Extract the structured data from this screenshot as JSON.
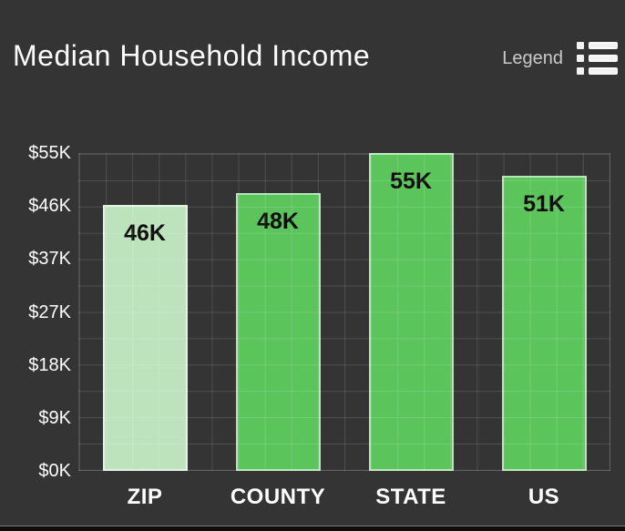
{
  "header": {
    "title": "Median Household Income",
    "legend_label": "Legend"
  },
  "colors": {
    "background": "#343434",
    "grid_line": "rgba(255,255,255,0.13)",
    "bar_green": "#5bc55b",
    "bar_pale_green": "#bce3bc",
    "bar_border": "rgba(255,255,255,0.55)",
    "title_text": "#fbfbfb",
    "axis_text": "#ffffff",
    "legend_text": "#c9c9c9",
    "bar_value_text": "#0d0d0d"
  },
  "chart_data": {
    "type": "bar",
    "title": "Median Household Income",
    "categories": [
      "ZIP",
      "COUNTY",
      "STATE",
      "US"
    ],
    "values": [
      46000,
      48000,
      55000,
      51000
    ],
    "bar_labels": [
      "46K",
      "48K",
      "55K",
      "51K"
    ],
    "bar_colors": [
      "#bce3bc",
      "#5bc55b",
      "#5bc55b",
      "#5bc55b"
    ],
    "xlabel": "",
    "ylabel": "",
    "ylim": [
      0,
      55000
    ],
    "y_tick_labels_top_to_bottom": [
      "$55K",
      "$46K",
      "$37K",
      "$27K",
      "$18K",
      "$9K",
      "$0K"
    ],
    "grid": "square minor grid, light lines on dark background, drawn over bars",
    "legend_position": "top-right collapsed (Legend button with list icon)"
  }
}
